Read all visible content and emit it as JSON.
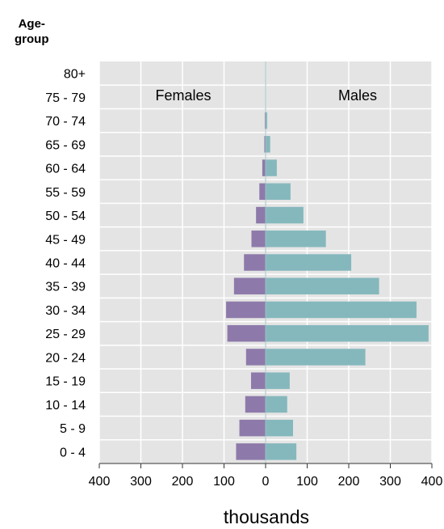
{
  "chart_data": {
    "type": "bar",
    "orientation": "horizontal",
    "subtype": "population-pyramid",
    "ytitle": "Age-\ngroup",
    "xlabel": "thousands",
    "categories": [
      "80+",
      "75 - 79",
      "70 - 74",
      "65 - 69",
      "60 - 64",
      "55 - 59",
      "50 - 54",
      "45 - 49",
      "40 - 44",
      "35 - 39",
      "30 - 34",
      "25 - 29",
      "20 - 24",
      "15 - 19",
      "10 - 14",
      "5 - 9",
      "0 - 4"
    ],
    "series": [
      {
        "name": "Females",
        "color": "#8d7aaa",
        "values": [
          1,
          1,
          2,
          3,
          8,
          15,
          23,
          34,
          52,
          76,
          95,
          92,
          47,
          35,
          49,
          63,
          71
        ]
      },
      {
        "name": "Males",
        "color": "#85b8bd",
        "values": [
          1,
          1,
          4,
          11,
          27,
          60,
          91,
          145,
          206,
          273,
          363,
          392,
          240,
          58,
          52,
          66,
          74
        ]
      }
    ],
    "xticks": [
      "400",
      "300",
      "200",
      "100",
      "0",
      "100",
      "200",
      "300",
      "400"
    ],
    "xlim": [
      -400,
      400
    ],
    "grid": true,
    "background": "#e4e4e4"
  }
}
